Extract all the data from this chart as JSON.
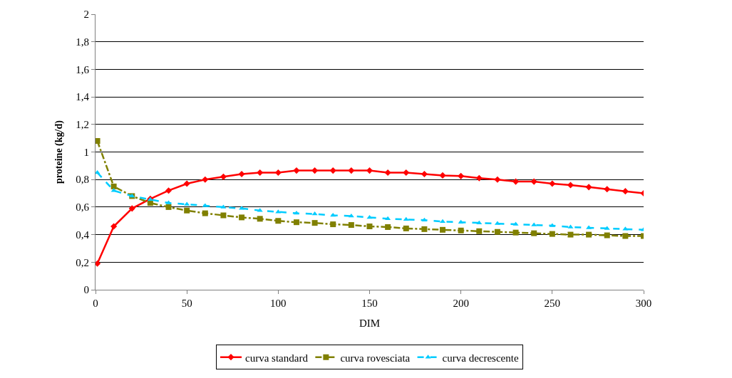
{
  "chart_data": {
    "type": "line",
    "xlabel": "DIM",
    "ylabel": "proteine (kg/d)",
    "x": [
      1,
      10,
      20,
      30,
      40,
      50,
      60,
      70,
      80,
      90,
      100,
      110,
      120,
      130,
      140,
      150,
      160,
      170,
      180,
      190,
      200,
      210,
      220,
      230,
      240,
      250,
      260,
      270,
      280,
      290,
      300
    ],
    "series": [
      {
        "name": "curva standard",
        "color": "#ff0000",
        "marker": "diamond",
        "line_style": "solid",
        "values": [
          0.19,
          0.46,
          0.59,
          0.66,
          0.72,
          0.77,
          0.8,
          0.82,
          0.84,
          0.85,
          0.85,
          0.865,
          0.865,
          0.865,
          0.865,
          0.865,
          0.85,
          0.85,
          0.84,
          0.83,
          0.825,
          0.81,
          0.8,
          0.785,
          0.785,
          0.77,
          0.76,
          0.745,
          0.73,
          0.715,
          0.7
        ]
      },
      {
        "name": "curva rovesciata",
        "color": "#808000",
        "marker": "square",
        "line_style": "dashdot",
        "values": [
          1.08,
          0.75,
          0.68,
          0.63,
          0.6,
          0.575,
          0.555,
          0.54,
          0.525,
          0.515,
          0.5,
          0.49,
          0.485,
          0.475,
          0.47,
          0.46,
          0.455,
          0.445,
          0.44,
          0.435,
          0.43,
          0.425,
          0.42,
          0.415,
          0.41,
          0.405,
          0.4,
          0.4,
          0.395,
          0.39,
          0.39
        ]
      },
      {
        "name": "curva decrescente",
        "color": "#00ccff",
        "marker": "triangle",
        "line_style": "dashed",
        "values": [
          0.85,
          0.72,
          0.68,
          0.655,
          0.63,
          0.62,
          0.61,
          0.6,
          0.59,
          0.575,
          0.565,
          0.555,
          0.55,
          0.54,
          0.535,
          0.525,
          0.515,
          0.51,
          0.505,
          0.495,
          0.49,
          0.485,
          0.48,
          0.475,
          0.47,
          0.465,
          0.455,
          0.45,
          0.445,
          0.44,
          0.435
        ]
      }
    ],
    "xlim": [
      0,
      300
    ],
    "xticks": [
      0,
      50,
      100,
      150,
      200,
      250,
      300
    ],
    "ylim": [
      0,
      2
    ],
    "yticks": [
      0,
      {
        "value": 0.2,
        "label": "0,2"
      },
      {
        "value": 0.4,
        "label": "0,4"
      },
      {
        "value": 0.6,
        "label": "0,6"
      },
      {
        "value": 0.8,
        "label": "0,8"
      },
      1,
      {
        "value": 1.2,
        "label": "1,2"
      },
      {
        "value": 1.4,
        "label": "1,4"
      },
      {
        "value": 1.6,
        "label": "1,6"
      },
      {
        "value": 1.8,
        "label": "1,8"
      },
      2
    ],
    "grid": "y",
    "legend": "bottom"
  }
}
